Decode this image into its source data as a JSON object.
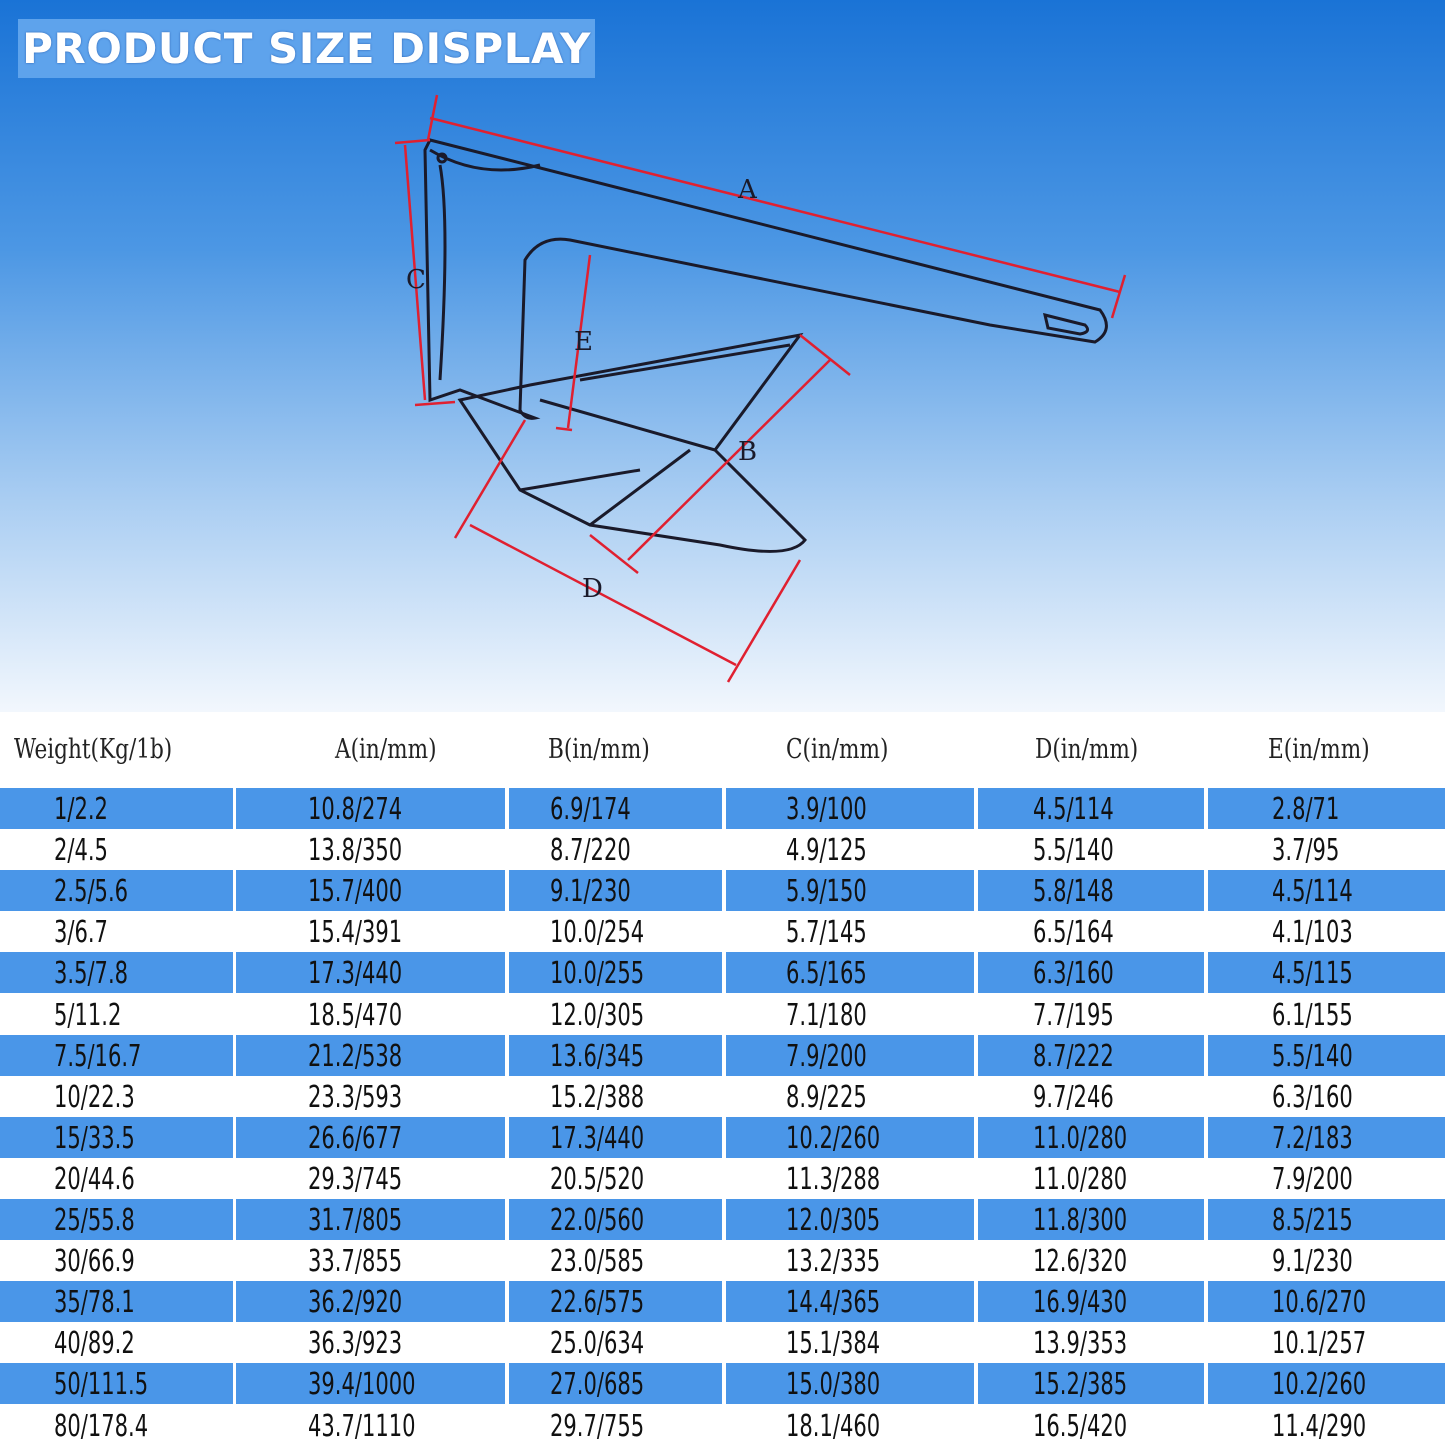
{
  "title": "PRODUCT SIZE DISPLAY",
  "diagram": {
    "labels": [
      "A",
      "B",
      "C",
      "D",
      "E"
    ],
    "dimension_color": "#e02030"
  },
  "colors": {
    "row_highlight": "#4a96e8",
    "title_bg": "#5ea3ec"
  },
  "table": {
    "headers": [
      "Weight(Kg/1b)",
      "A(in/mm)",
      "B(in/mm)",
      "C(in/mm)",
      "D(in/mm)",
      "E(in/mm)"
    ],
    "rows": [
      [
        "1/2.2",
        "10.8/274",
        "6.9/174",
        "3.9/100",
        "4.5/114",
        "2.8/71"
      ],
      [
        "2/4.5",
        "13.8/350",
        "8.7/220",
        "4.9/125",
        "5.5/140",
        "3.7/95"
      ],
      [
        "2.5/5.6",
        "15.7/400",
        "9.1/230",
        "5.9/150",
        "5.8/148",
        "4.5/114"
      ],
      [
        "3/6.7",
        "15.4/391",
        "10.0/254",
        "5.7/145",
        "6.5/164",
        "4.1/103"
      ],
      [
        "3.5/7.8",
        "17.3/440",
        "10.0/255",
        "6.5/165",
        "6.3/160",
        "4.5/115"
      ],
      [
        "5/11.2",
        "18.5/470",
        "12.0/305",
        "7.1/180",
        "7.7/195",
        "6.1/155"
      ],
      [
        "7.5/16.7",
        "21.2/538",
        "13.6/345",
        "7.9/200",
        "8.7/222",
        "5.5/140"
      ],
      [
        "10/22.3",
        "23.3/593",
        "15.2/388",
        "8.9/225",
        "9.7/246",
        "6.3/160"
      ],
      [
        "15/33.5",
        "26.6/677",
        "17.3/440",
        "10.2/260",
        "11.0/280",
        "7.2/183"
      ],
      [
        "20/44.6",
        "29.3/745",
        "20.5/520",
        "11.3/288",
        "11.0/280",
        "7.9/200"
      ],
      [
        "25/55.8",
        "31.7/805",
        "22.0/560",
        "12.0/305",
        "11.8/300",
        "8.5/215"
      ],
      [
        "30/66.9",
        "33.7/855",
        "23.0/585",
        "13.2/335",
        "12.6/320",
        "9.1/230"
      ],
      [
        "35/78.1",
        "36.2/920",
        "22.6/575",
        "14.4/365",
        "16.9/430",
        "10.6/270"
      ],
      [
        "40/89.2",
        "36.3/923",
        "25.0/634",
        "15.1/384",
        "13.9/353",
        "10.1/257"
      ],
      [
        "50/111.5",
        "39.4/1000",
        "27.0/685",
        "15.0/380",
        "15.2/385",
        "10.2/260"
      ],
      [
        "80/178.4",
        "43.7/1110",
        "29.7/755",
        "18.1/460",
        "16.5/420",
        "11.4/290"
      ]
    ]
  }
}
